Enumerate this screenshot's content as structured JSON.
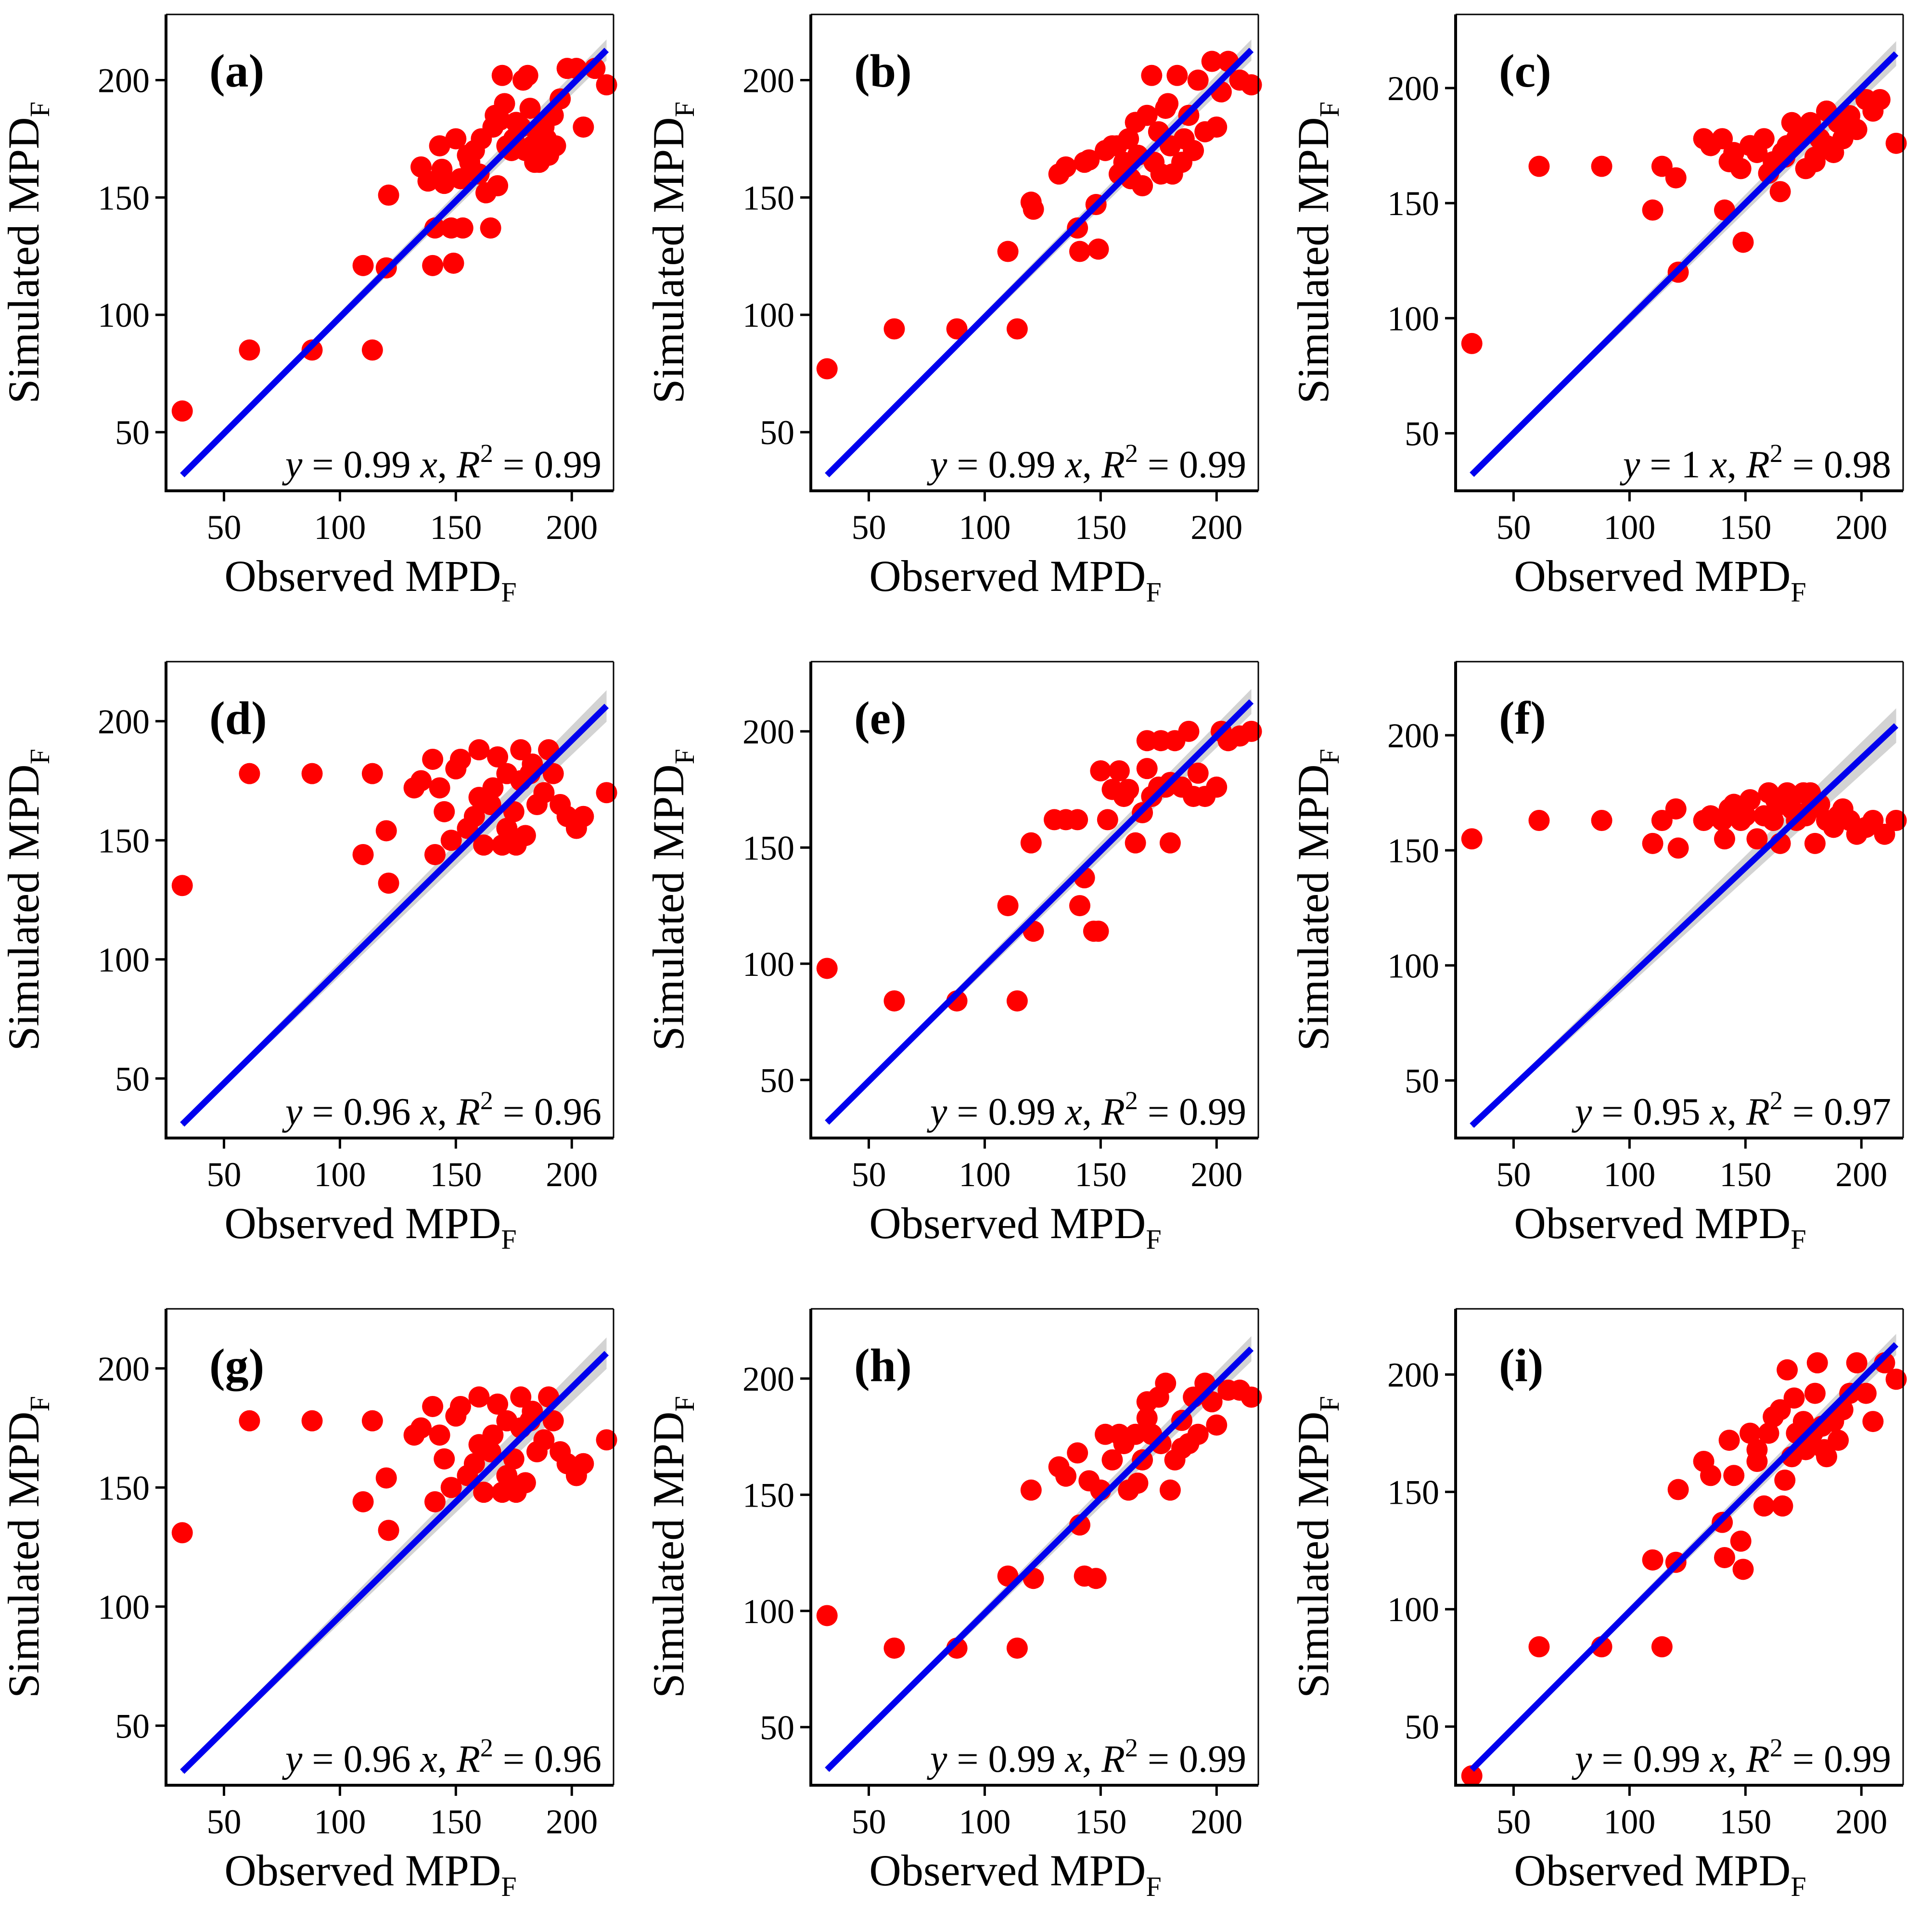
{
  "figure": {
    "x_axis_label": "Observed MPD",
    "x_axis_sub": "F",
    "y_axis_label": "Simulated MPD",
    "y_axis_sub": "F"
  },
  "colors": {
    "points": "#ff0000",
    "fit_line": "#0000ee",
    "confidence_band": "#c8c8c8",
    "axis": "#000000"
  },
  "chart_data": [
    {
      "type": "scatter",
      "panel": "(a)",
      "title": "",
      "xlabel": "Observed MPD_F",
      "ylabel": "Simulated MPD_F",
      "xlim": [
        25,
        218
      ],
      "ylim": [
        25,
        228
      ],
      "xticks": [
        50,
        100,
        150,
        200
      ],
      "yticks": [
        50,
        100,
        150,
        200
      ],
      "fit": {
        "slope": 0.99,
        "band": 1.5
      },
      "equation": {
        "lhs": "y",
        "slope_text": "= 0.99",
        "x": "x",
        "r": "R",
        "r_exp": "2",
        "r2_text": "= 0.99"
      },
      "x": [
        32,
        61,
        88,
        110,
        114,
        120,
        121,
        140,
        141,
        143,
        144,
        148,
        149,
        150,
        153,
        156,
        158,
        160,
        161,
        163,
        165,
        166,
        168,
        169,
        170,
        172,
        174,
        175,
        176,
        178,
        180,
        181,
        182,
        183,
        185,
        186,
        188,
        190,
        192,
        195,
        198,
        202,
        205,
        210,
        215,
        171,
        179,
        184,
        155,
        167,
        189,
        193,
        145,
        135,
        138,
        152
      ],
      "y": [
        59,
        85,
        85,
        121,
        85,
        120,
        151,
        121,
        137,
        172,
        162,
        137,
        122,
        175,
        137,
        165,
        170,
        160,
        175,
        152,
        137,
        180,
        155,
        183,
        202,
        172,
        170,
        175,
        182,
        180,
        170,
        202,
        188,
        172,
        178,
        165,
        180,
        168,
        185,
        192,
        205,
        205,
        180,
        205,
        198,
        190,
        200,
        165,
        168,
        185,
        175,
        172,
        156,
        163,
        157,
        158
      ]
    },
    {
      "type": "scatter",
      "panel": "(b)",
      "title": "",
      "xlabel": "Observed MPD_F",
      "ylabel": "Simulated MPD_F",
      "xlim": [
        25,
        218
      ],
      "ylim": [
        25,
        228
      ],
      "xticks": [
        50,
        100,
        150,
        200
      ],
      "yticks": [
        50,
        100,
        150,
        200
      ],
      "fit": {
        "slope": 0.99,
        "band": 1.5
      },
      "equation": {
        "lhs": "y",
        "slope_text": "= 0.99",
        "x": "x",
        "r": "R",
        "r_exp": "2",
        "r2_text": "= 0.99"
      },
      "x": [
        32,
        61,
        88,
        110,
        114,
        120,
        121,
        132,
        135,
        140,
        141,
        143,
        145,
        148,
        149,
        152,
        155,
        158,
        160,
        162,
        165,
        166,
        168,
        170,
        172,
        175,
        176,
        178,
        180,
        181,
        183,
        185,
        188,
        190,
        192,
        195,
        198,
        200,
        202,
        205,
        210,
        215,
        173,
        179,
        186,
        163,
        157
      ],
      "y": [
        77,
        94,
        94,
        127,
        94,
        148,
        145,
        160,
        163,
        137,
        127,
        165,
        166,
        147,
        128,
        170,
        172,
        160,
        165,
        175,
        182,
        168,
        155,
        185,
        202,
        178,
        160,
        188,
        172,
        160,
        202,
        165,
        185,
        170,
        200,
        178,
        208,
        180,
        195,
        208,
        200,
        198,
        165,
        190,
        175,
        158,
        172
      ]
    },
    {
      "type": "scatter",
      "panel": "(c)",
      "title": "",
      "xlabel": "Observed MPD_F",
      "ylabel": "Simulated MPD_F",
      "xlim": [
        25,
        218
      ],
      "ylim": [
        25,
        232
      ],
      "xticks": [
        50,
        100,
        150,
        200
      ],
      "yticks": [
        50,
        100,
        150,
        200
      ],
      "fit": {
        "slope": 1.0,
        "band": 1.8
      },
      "equation": {
        "lhs": "y",
        "slope_text": "= 1",
        "x": "x",
        "r": "R",
        "r_exp": "2",
        "r2_text": "= 0.98"
      },
      "x": [
        32,
        61,
        88,
        110,
        114,
        120,
        121,
        132,
        135,
        140,
        141,
        143,
        145,
        148,
        149,
        152,
        155,
        158,
        160,
        162,
        165,
        166,
        168,
        170,
        172,
        175,
        176,
        178,
        180,
        182,
        185,
        188,
        190,
        192,
        195,
        198,
        202,
        205,
        208,
        215,
        180,
        185,
        174,
        167
      ],
      "y": [
        89,
        166,
        166,
        147,
        166,
        161,
        120,
        178,
        175,
        178,
        147,
        168,
        172,
        165,
        133,
        175,
        172,
        178,
        163,
        168,
        155,
        172,
        175,
        185,
        178,
        180,
        165,
        185,
        170,
        178,
        190,
        172,
        185,
        178,
        188,
        182,
        195,
        190,
        195,
        176,
        168,
        175,
        182,
        170
      ]
    },
    {
      "type": "scatter",
      "panel": "(d)",
      "title": "",
      "xlabel": "Observed MPD_F",
      "ylabel": "Simulated MPD_F",
      "xlim": [
        25,
        218
      ],
      "ylim": [
        25,
        225
      ],
      "xticks": [
        50,
        100,
        150,
        200
      ],
      "yticks": [
        50,
        100,
        150,
        200
      ],
      "fit": {
        "slope": 0.96,
        "band": 2.2
      },
      "equation": {
        "lhs": "y",
        "slope_text": "= 0.96",
        "x": "x",
        "r": "R",
        "r_exp": "2",
        "r2_text": "= 0.96"
      },
      "x": [
        32,
        61,
        88,
        110,
        114,
        120,
        121,
        132,
        135,
        140,
        141,
        143,
        145,
        148,
        150,
        152,
        155,
        158,
        160,
        162,
        165,
        166,
        168,
        170,
        172,
        175,
        176,
        178,
        180,
        182,
        185,
        188,
        190,
        192,
        195,
        198,
        202,
        205,
        215,
        178,
        183,
        160,
        172
      ],
      "y": [
        131,
        178,
        178,
        144,
        178,
        154,
        132,
        172,
        175,
        184,
        144,
        172,
        162,
        150,
        180,
        184,
        155,
        160,
        188,
        148,
        165,
        172,
        185,
        148,
        178,
        162,
        148,
        188,
        152,
        178,
        165,
        170,
        188,
        178,
        165,
        160,
        155,
        160,
        170,
        175,
        182,
        168,
        155
      ]
    },
    {
      "type": "scatter",
      "panel": "(e)",
      "title": "",
      "xlabel": "Observed MPD_F",
      "ylabel": "Simulated MPD_F",
      "xlim": [
        25,
        218
      ],
      "ylim": [
        25,
        230
      ],
      "xticks": [
        50,
        100,
        150,
        200
      ],
      "yticks": [
        50,
        100,
        150,
        200
      ],
      "fit": {
        "slope": 0.99,
        "band": 1.8
      },
      "equation": {
        "lhs": "y",
        "slope_text": "= 0.99",
        "x": "x",
        "r": "R",
        "r_exp": "2",
        "r2_text": "= 0.99"
      },
      "x": [
        32,
        61,
        88,
        110,
        114,
        120,
        121,
        130,
        135,
        140,
        141,
        143,
        147,
        149,
        150,
        153,
        155,
        158,
        160,
        162,
        165,
        168,
        170,
        172,
        175,
        176,
        178,
        180,
        182,
        185,
        188,
        190,
        192,
        195,
        200,
        202,
        205,
        210,
        215,
        170,
        180
      ],
      "y": [
        98,
        84,
        84,
        125,
        84,
        152,
        114,
        162,
        162,
        162,
        125,
        137,
        114,
        114,
        183,
        162,
        175,
        183,
        172,
        175,
        152,
        165,
        196,
        172,
        176,
        196,
        176,
        152,
        196,
        176,
        200,
        172,
        182,
        172,
        176,
        200,
        196,
        198,
        200,
        184,
        178
      ]
    },
    {
      "type": "scatter",
      "panel": "(f)",
      "title": "",
      "xlabel": "Observed MPD_F",
      "ylabel": "Simulated MPD_F",
      "xlim": [
        25,
        218
      ],
      "ylim": [
        25,
        232
      ],
      "xticks": [
        50,
        100,
        150,
        200
      ],
      "yticks": [
        50,
        100,
        150,
        200
      ],
      "fit": {
        "slope": 0.95,
        "band": 2.5
      },
      "equation": {
        "lhs": "y",
        "slope_text": "= 0.95",
        "x": "x",
        "r": "R",
        "r_exp": "2",
        "r2_text": "= 0.97"
      },
      "x": [
        32,
        61,
        88,
        110,
        114,
        120,
        121,
        132,
        135,
        140,
        141,
        143,
        145,
        148,
        150,
        152,
        155,
        158,
        160,
        162,
        165,
        166,
        168,
        170,
        172,
        175,
        176,
        178,
        180,
        182,
        185,
        188,
        190,
        192,
        195,
        198,
        202,
        205,
        210,
        215,
        163,
        178
      ],
      "y": [
        155,
        163,
        163,
        153,
        163,
        168,
        151,
        163,
        165,
        163,
        155,
        168,
        170,
        163,
        165,
        172,
        155,
        165,
        175,
        163,
        153,
        170,
        175,
        168,
        163,
        175,
        165,
        175,
        153,
        170,
        163,
        160,
        165,
        168,
        163,
        157,
        160,
        163,
        157,
        163,
        172,
        168
      ]
    },
    {
      "type": "scatter",
      "panel": "(g)",
      "title": "",
      "xlabel": "Observed MPD_F",
      "ylabel": "Simulated MPD_F",
      "xlim": [
        25,
        218
      ],
      "ylim": [
        25,
        225
      ],
      "xticks": [
        50,
        100,
        150,
        200
      ],
      "yticks": [
        50,
        100,
        150,
        200
      ],
      "fit": {
        "slope": 0.96,
        "band": 2.2
      },
      "equation": {
        "lhs": "y",
        "slope_text": "= 0.96",
        "x": "x",
        "r": "R",
        "r_exp": "2",
        "r2_text": "= 0.96"
      },
      "x": [
        32,
        61,
        88,
        110,
        114,
        120,
        121,
        132,
        135,
        140,
        141,
        143,
        145,
        148,
        150,
        152,
        155,
        158,
        160,
        162,
        165,
        166,
        168,
        170,
        172,
        175,
        176,
        178,
        180,
        182,
        185,
        188,
        190,
        192,
        195,
        198,
        202,
        205,
        215,
        178,
        183,
        160,
        172
      ],
      "y": [
        131,
        178,
        178,
        144,
        178,
        154,
        132,
        172,
        175,
        184,
        144,
        172,
        162,
        150,
        180,
        184,
        155,
        160,
        188,
        148,
        165,
        172,
        185,
        148,
        178,
        162,
        148,
        188,
        152,
        178,
        165,
        170,
        188,
        178,
        165,
        160,
        155,
        160,
        170,
        175,
        182,
        168,
        155
      ]
    },
    {
      "type": "scatter",
      "panel": "(h)",
      "title": "",
      "xlabel": "Observed MPD_F",
      "ylabel": "Simulated MPD_F",
      "xlim": [
        25,
        218
      ],
      "ylim": [
        25,
        230
      ],
      "xticks": [
        50,
        100,
        150,
        200
      ],
      "yticks": [
        50,
        100,
        150,
        200
      ],
      "fit": {
        "slope": 0.99,
        "band": 1.8
      },
      "equation": {
        "lhs": "y",
        "slope_text": "= 0.99",
        "x": "x",
        "r": "R",
        "r_exp": "2",
        "r2_text": "= 0.99"
      },
      "x": [
        32,
        61,
        88,
        110,
        114,
        120,
        121,
        132,
        135,
        140,
        141,
        143,
        145,
        148,
        150,
        152,
        155,
        158,
        160,
        162,
        165,
        166,
        168,
        170,
        172,
        175,
        176,
        178,
        180,
        182,
        185,
        188,
        190,
        192,
        195,
        198,
        200,
        205,
        210,
        215,
        170,
        185
      ],
      "y": [
        98,
        84,
        84,
        115,
        84,
        152,
        114,
        162,
        158,
        168,
        137,
        115,
        156,
        114,
        152,
        176,
        165,
        176,
        172,
        152,
        176,
        155,
        165,
        190,
        176,
        192,
        172,
        198,
        152,
        165,
        182,
        172,
        192,
        176,
        198,
        190,
        180,
        195,
        195,
        192,
        183,
        170
      ]
    },
    {
      "type": "scatter",
      "panel": "(i)",
      "title": "",
      "xlabel": "Observed MPD_F",
      "ylabel": "Simulated MPD_F",
      "xlim": [
        25,
        218
      ],
      "ylim": [
        25,
        228
      ],
      "xticks": [
        50,
        100,
        150,
        200
      ],
      "yticks": [
        50,
        100,
        150,
        200
      ],
      "fit": {
        "slope": 0.99,
        "band": 1.5
      },
      "equation": {
        "lhs": "y",
        "slope_text": "= 0.99",
        "x": "x",
        "r": "R",
        "r_exp": "2",
        "r2_text": "= 0.99"
      },
      "x": [
        32,
        61,
        88,
        110,
        114,
        120,
        121,
        132,
        135,
        140,
        141,
        143,
        145,
        148,
        149,
        152,
        155,
        158,
        160,
        162,
        165,
        166,
        168,
        170,
        172,
        175,
        176,
        178,
        180,
        181,
        183,
        185,
        188,
        190,
        192,
        195,
        198,
        202,
        205,
        210,
        215,
        171,
        179,
        184,
        155,
        167
      ],
      "y": [
        29,
        84,
        84,
        121,
        84,
        120,
        151,
        163,
        157,
        137,
        122,
        172,
        157,
        129,
        117,
        175,
        163,
        144,
        175,
        182,
        185,
        144,
        202,
        165,
        175,
        180,
        168,
        172,
        192,
        205,
        178,
        165,
        180,
        172,
        185,
        192,
        205,
        192,
        180,
        205,
        198,
        190,
        175,
        168,
        168,
        155
      ]
    }
  ]
}
